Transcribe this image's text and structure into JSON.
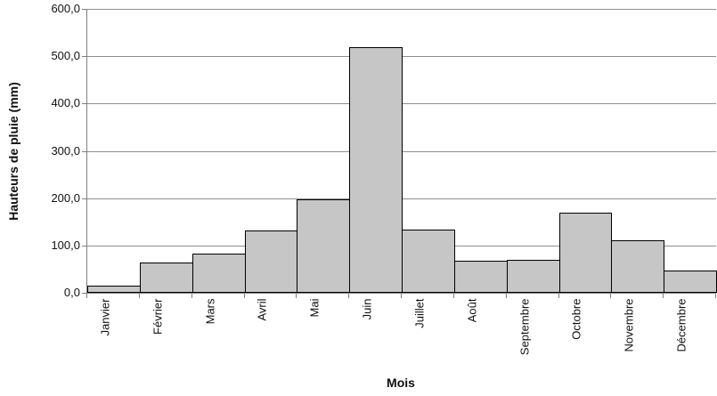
{
  "chart_data": {
    "type": "bar",
    "title": "",
    "xlabel": "Mois",
    "ylabel": "Hauteurs de pluie (mm)",
    "categories": [
      "Janvier",
      "Février",
      "Mars",
      "Avril",
      "Mai",
      "Juin",
      "Juillet",
      "Août",
      "Septembre",
      "Octobre",
      "Novembre",
      "Décembre"
    ],
    "values": [
      14,
      62,
      81,
      130,
      195,
      518,
      132,
      65,
      68,
      168,
      109,
      45
    ],
    "ylim": [
      0,
      600
    ],
    "ytick_step": 100,
    "ytick_labels": [
      "0,0",
      "100,0",
      "200,0",
      "300,0",
      "400,0",
      "500,0",
      "600,0"
    ],
    "grid": true,
    "legend": false,
    "bar_gap": 0,
    "colors": {
      "bar_fill": "#c6c6c6",
      "bar_border": "#000000",
      "gridline": "#8f8f8f",
      "axis_line": "#808080",
      "text": "#111111"
    }
  }
}
